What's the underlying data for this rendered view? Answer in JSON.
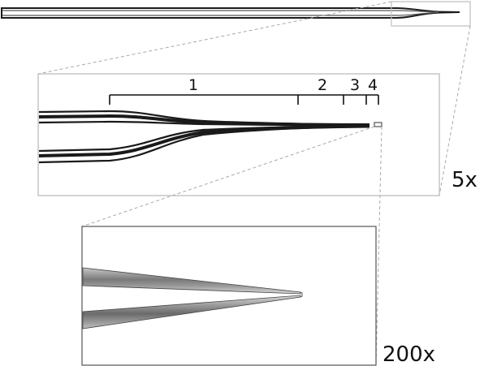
{
  "segments": [
    {
      "label": "1"
    },
    {
      "label": "2"
    },
    {
      "label": "3"
    },
    {
      "label": "4"
    }
  ],
  "magnifications": {
    "level_1": "5x",
    "level_2": "200x"
  },
  "colors": {
    "frame": "#bdbdbd",
    "guide_line": "#aaaaaa",
    "wall_dark": "#1a1a1a",
    "wall_mid": "#777777",
    "wall_light": "#c8c8c8"
  }
}
